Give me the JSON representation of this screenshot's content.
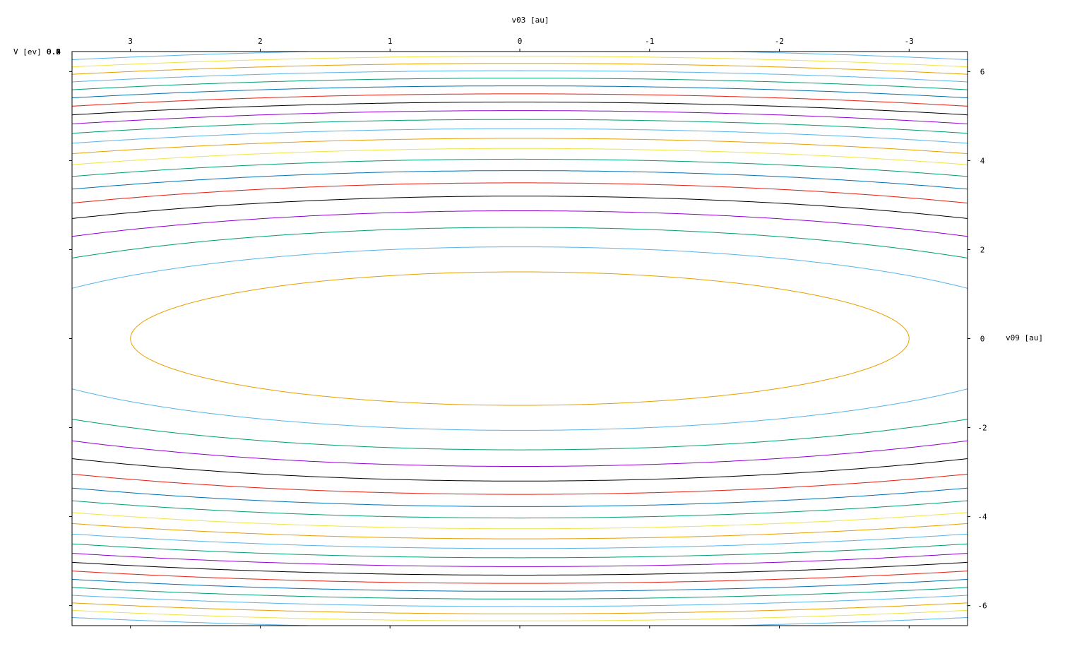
{
  "chart_data": {
    "type": "contour",
    "title": "",
    "xlabel": "v03 [au]",
    "ylabel": "v09 [au]",
    "zlabel": "V [ev]",
    "zlabel_stack": [
      "0.8",
      "0.6",
      "0.4",
      "0.2",
      "0.0"
    ],
    "x_axis_position": "top",
    "y_axis_position": "right",
    "x_reversed": true,
    "xlim": [
      3.45,
      -3.45
    ],
    "ylim": [
      -6.45,
      6.45
    ],
    "x_ticks": [
      3,
      2,
      1,
      0,
      -1,
      -2,
      -3
    ],
    "x_tick_labels": [
      "3",
      "2",
      "1",
      "0",
      "-1",
      "-2",
      "-3"
    ],
    "y_ticks": [
      6,
      4,
      2,
      0,
      -2,
      -4,
      -6
    ],
    "y_tick_labels": [
      "6",
      "4",
      "2",
      "0",
      "-2",
      "-4",
      "-6"
    ],
    "grid": false,
    "contour_model": {
      "a": 0.01,
      "b": 0.04,
      "base": 0.0,
      "step": 0.05
    },
    "levels": [
      0.09,
      0.17,
      0.25,
      0.33,
      0.41,
      0.49,
      0.57,
      0.65,
      0.73,
      0.81,
      0.89,
      0.97,
      1.05,
      1.13,
      1.21,
      1.29,
      1.37,
      1.45,
      1.53,
      1.61,
      1.69
    ],
    "level_colors": [
      "#e69f00",
      "#56b4e9",
      "#009e73",
      "#9400d3",
      "#000000",
      "#e51e10",
      "#0072b2",
      "#009e73",
      "#f0e442",
      "#e69f00",
      "#56b4e9",
      "#009e73",
      "#9400d3",
      "#000000",
      "#e51e10",
      "#0072b2",
      "#009e73",
      "#56b4e9",
      "#e69f00",
      "#f0e442",
      "#56b4e9"
    ]
  }
}
